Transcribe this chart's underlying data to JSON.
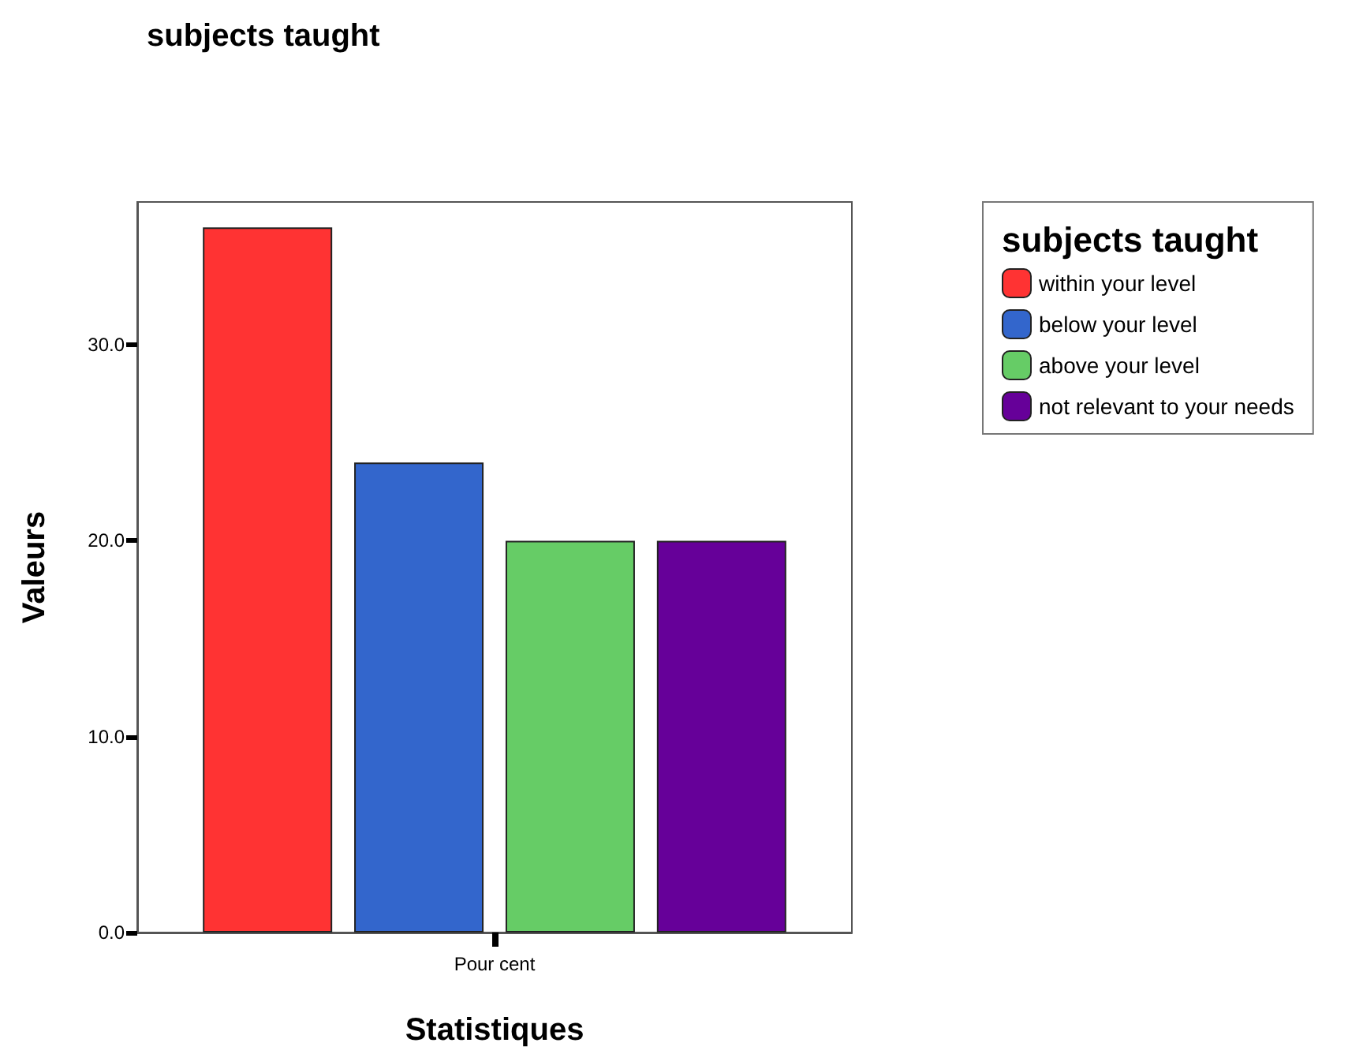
{
  "chart_data": {
    "type": "bar",
    "title": "subjects taught",
    "xlabel": "Statistiques",
    "ylabel": "Valeurs",
    "legend_title": "subjects taught",
    "categories": [
      "Pour cent"
    ],
    "series": [
      {
        "name": "within your level",
        "color": "#ff3333",
        "values": [
          36
        ]
      },
      {
        "name": "below your level",
        "color": "#3366cc",
        "values": [
          24
        ]
      },
      {
        "name": "above your level",
        "color": "#66cc66",
        "values": [
          20
        ]
      },
      {
        "name": "not relevant to your needs",
        "color": "#660099",
        "values": [
          20
        ]
      }
    ],
    "ylim": [
      0,
      37.3
    ],
    "yticks": [
      {
        "value": 0,
        "label": "0.0"
      },
      {
        "value": 10,
        "label": "10.0"
      },
      {
        "value": 20,
        "label": "20.0"
      },
      {
        "value": 30,
        "label": "30.0"
      }
    ],
    "grid": false,
    "legend": "top right"
  }
}
